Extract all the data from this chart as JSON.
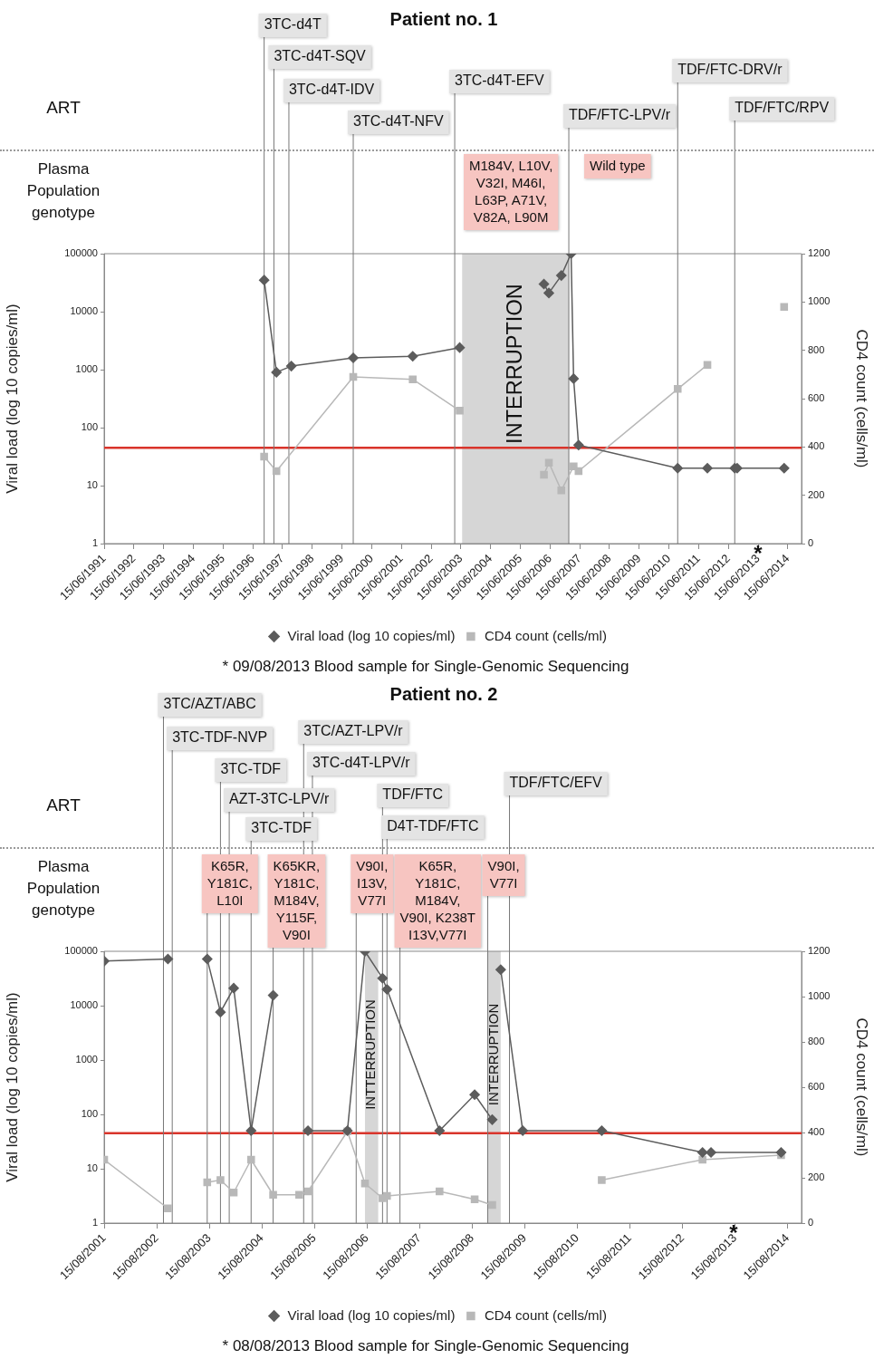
{
  "chart_data": [
    {
      "type": "line",
      "title": "Patient no. 1",
      "ylabel": "Viral load (log 10 copies/ml)",
      "y2label": "CD4 count (cells/ml)",
      "log": "y",
      "legend": "bottom",
      "xlim": [
        "1991-06-15",
        "2014-12-01"
      ],
      "xticks": [
        {
          "value": "1991-06-15",
          "label": "15/06/1991"
        },
        {
          "value": "1992-06-15",
          "label": "15/06/1992"
        },
        {
          "value": "1993-06-15",
          "label": "15/06/1993"
        },
        {
          "value": "1994-06-15",
          "label": "15/06/1994"
        },
        {
          "value": "1995-06-15",
          "label": "15/06/1995"
        },
        {
          "value": "1996-06-15",
          "label": "15/06/1996"
        },
        {
          "value": "1997-06-15",
          "label": "15/06/1997"
        },
        {
          "value": "1998-06-15",
          "label": "15/06/1998"
        },
        {
          "value": "1999-06-15",
          "label": "15/06/1999"
        },
        {
          "value": "2000-06-15",
          "label": "15/06/2000"
        },
        {
          "value": "2001-06-15",
          "label": "15/06/2001"
        },
        {
          "value": "2002-06-15",
          "label": "15/06/2002"
        },
        {
          "value": "2003-06-15",
          "label": "15/06/2003"
        },
        {
          "value": "2004-06-15",
          "label": "15/06/2004"
        },
        {
          "value": "2005-06-15",
          "label": "15/06/2005"
        },
        {
          "value": "2006-06-15",
          "label": "15/06/2006"
        },
        {
          "value": "2007-06-15",
          "label": "15/06/2007"
        },
        {
          "value": "2008-06-15",
          "label": "15/06/2008"
        },
        {
          "value": "2009-06-15",
          "label": "15/06/2009"
        },
        {
          "value": "2010-06-15",
          "label": "15/06/2010"
        },
        {
          "value": "2011-06-15",
          "label": "15/06/2011"
        },
        {
          "value": "2012-06-15",
          "label": "15/06/2012"
        },
        {
          "value": "2013-06-15",
          "label": "15/06/2013"
        },
        {
          "value": "2014-06-15",
          "label": "15/06/2014"
        }
      ],
      "ylim": [
        1,
        100000
      ],
      "yticks": [
        1,
        10,
        100,
        1000,
        10000,
        100000
      ],
      "y2lim": [
        0,
        1200
      ],
      "y2ticks": [
        0,
        200,
        400,
        600,
        800,
        1000,
        1200
      ],
      "series": [
        {
          "name": "Viral load (log 10 copies/ml)",
          "color": "#5c5c5c",
          "marker": "diamond",
          "x": [
            "1996-11",
            "1997-04",
            "1997-10",
            "1999-11",
            "2001-11",
            "2003-06",
            "2004-12",
            "2006-04",
            "2006-06",
            "2006-11",
            "2007-03",
            "2007-04",
            "2007-06",
            "2010-10",
            "2011-10",
            "2012-09",
            "2012-10",
            "2014-05"
          ],
          "values": [
            35000,
            900,
            1150,
            1600,
            1700,
            2400,
            null,
            30000,
            21000,
            42000,
            100000,
            700,
            50,
            20,
            20,
            20,
            20,
            20
          ]
        },
        {
          "name": "CD4 count (cells/ml)",
          "color": "#b8b8b8",
          "marker": "square",
          "axis": "y2",
          "x": [
            "1996-11",
            "1997-04",
            "1999-11",
            "2001-11",
            "2003-06",
            "2004-12",
            "2006-04",
            "2006-06",
            "2006-11",
            "2007-04",
            "2007-06",
            "2010-10",
            "2011-10",
            "2013-01",
            "2014-05"
          ],
          "values": [
            360,
            300,
            690,
            680,
            550,
            null,
            285,
            335,
            220,
            320,
            300,
            640,
            740,
            null,
            980
          ]
        }
      ],
      "ref_lines": [
        {
          "axis": "y",
          "value": 45,
          "color": "#d9342b"
        },
        {
          "axis": "x",
          "value": "1996-11",
          "label": "3TC-d4T"
        },
        {
          "axis": "x",
          "value": "1997-03",
          "label": "3TC-d4T-SQV"
        },
        {
          "axis": "x",
          "value": "1997-09",
          "label": "3TC-d4T-IDV"
        },
        {
          "axis": "x",
          "value": "1999-11",
          "label": "3TC-d4T-NFV"
        },
        {
          "axis": "x",
          "value": "2003-04",
          "label": "3TC-d4T-EFV"
        },
        {
          "axis": "x",
          "value": "2007-02",
          "label": "TDF/FTC-LPV/r"
        },
        {
          "axis": "x",
          "value": "2010-10",
          "label": "TDF/FTC-DRV/r"
        },
        {
          "axis": "x",
          "value": "2012-09",
          "label": "TDF/FTC/RPV"
        }
      ],
      "bands": [
        {
          "axis": "x",
          "from": "2003-07",
          "to": "2007-02",
          "label": "INTERRUPTION",
          "color": "#d6d6d6"
        }
      ],
      "annotations": [
        "ART",
        "Plasma\nPopulation\ngenotype",
        "M184V, L10V,\nV32I, M46I,\nL63P, A71V,\nV82A, L90M",
        "Wild type",
        "*",
        "* 09/08/2013 Blood sample for Single-Genomic Sequencing"
      ]
    },
    {
      "type": "line",
      "title": "Patient no. 2",
      "ylabel": "Viral load (log 10 copies/ml)",
      "y2label": "CD4 count (cells/ml)",
      "log": "y",
      "legend": "bottom",
      "xlim": [
        "2001-08-15",
        "2014-11-20"
      ],
      "xticks": [
        {
          "value": "2001-08-15",
          "label": "15/08/2001"
        },
        {
          "value": "2002-08-15",
          "label": "15/08/2002"
        },
        {
          "value": "2003-08-15",
          "label": "15/08/2003"
        },
        {
          "value": "2004-08-15",
          "label": "15/08/2004"
        },
        {
          "value": "2005-08-15",
          "label": "15/08/2005"
        },
        {
          "value": "2006-08-15",
          "label": "15/08/2006"
        },
        {
          "value": "2007-08-15",
          "label": "15/08/2007"
        },
        {
          "value": "2008-08-15",
          "label": "15/08/2008"
        },
        {
          "value": "2009-08-15",
          "label": "15/08/2009"
        },
        {
          "value": "2010-08-15",
          "label": "15/08/2010"
        },
        {
          "value": "2011-08-15",
          "label": "15/08/2011"
        },
        {
          "value": "2012-08-15",
          "label": "15/08/2012"
        },
        {
          "value": "2013-08-15",
          "label": "15/08/2013"
        },
        {
          "value": "2014-08-15",
          "label": "15/08/2014"
        }
      ],
      "ylim": [
        1,
        100000
      ],
      "yticks": [
        1,
        10,
        100,
        1000,
        10000,
        100000
      ],
      "y2lim": [
        0,
        1200
      ],
      "y2ticks": [
        0,
        200,
        400,
        600,
        800,
        1000,
        1200
      ],
      "series": [
        {
          "name": "Viral load (log 10 copies/ml)",
          "color": "#5c5c5c",
          "marker": "diamond",
          "x": [
            "2001-08-15",
            "2002-11",
            "2003-03",
            "2003-08",
            "2003-11",
            "2004-02",
            "2004-06",
            "2004-11",
            "2005-03",
            "2005-07",
            "2006-04",
            "2006-08",
            "2006-12",
            "2007-01",
            "2008-01",
            "2008-09",
            "2009-01",
            "2009-02",
            "2009-03",
            "2009-08",
            "2011-02",
            "2013-01",
            "2013-03",
            "2014-07"
          ],
          "values": [
            66000,
            72000,
            null,
            72000,
            7600,
            21000,
            50,
            15500,
            null,
            50,
            50,
            100000,
            32000,
            20000,
            50,
            230,
            80,
            null,
            46000,
            50,
            50,
            20,
            20,
            20
          ]
        },
        {
          "name": "CD4 count (cells/ml)",
          "color": "#b8b8b8",
          "marker": "square",
          "axis": "y2",
          "x": [
            "2001-08-15",
            "2002-11",
            "2003-03",
            "2003-08",
            "2003-11",
            "2004-02",
            "2004-06",
            "2004-11",
            "2005-05",
            "2005-07",
            "2006-04",
            "2006-08",
            "2006-12",
            "2007-01",
            "2008-01",
            "2008-09",
            "2009-01",
            "2010-01",
            "2011-02",
            "2013-01",
            "2014-07"
          ],
          "values": [
            280,
            65,
            null,
            180,
            190,
            135,
            280,
            125,
            125,
            140,
            405,
            175,
            110,
            120,
            140,
            105,
            80,
            null,
            190,
            280,
            300
          ]
        }
      ],
      "ref_lines": [
        {
          "axis": "y",
          "value": 45,
          "color": "#d9342b"
        },
        {
          "axis": "x",
          "value": "2002-10",
          "label": "3TC/AZT/ABC"
        },
        {
          "axis": "x",
          "value": "2002-12",
          "label": "3TC-TDF-NVP"
        },
        {
          "axis": "x",
          "value": "2003-11",
          "label": "3TC-TDF"
        },
        {
          "axis": "x",
          "value": "2004-01",
          "label": "AZT-3TC-LPV/r"
        },
        {
          "axis": "x",
          "value": "2004-06",
          "label": "3TC-TDF"
        },
        {
          "axis": "x",
          "value": "2005-06",
          "label": "3TC/AZT-LPV/r"
        },
        {
          "axis": "x",
          "value": "2005-08",
          "label": "3TC-d4T-LPV/r"
        },
        {
          "axis": "x",
          "value": "2006-12",
          "label": "TDF/FTC"
        },
        {
          "axis": "x",
          "value": "2007-01",
          "label": "D4T-TDF/FTC"
        },
        {
          "axis": "x",
          "value": "2009-05",
          "label": "TDF/FTC/EFV"
        },
        {
          "axis": "x",
          "value": "2003-08",
          "label": "K65R,\nY181C,\nL10I"
        },
        {
          "axis": "x",
          "value": "2004-11",
          "label": "K65KR,\nY181C,\nM184V,\nY115F,\nV90I"
        },
        {
          "axis": "x",
          "value": "2006-06",
          "label": "V90I,\nI13V,\nV77I"
        },
        {
          "axis": "x",
          "value": "2007-04",
          "label": "K65R,\nY181C,\nM184V,\nV90I, K238T\nI13V,V77I"
        },
        {
          "axis": "x",
          "value": "2008-12",
          "label": "V90I,\nV77I"
        }
      ],
      "bands": [
        {
          "axis": "x",
          "from": "2006-08",
          "to": "2006-11",
          "label": "INTTERRUPTION",
          "color": "#d6d6d6"
        },
        {
          "axis": "x",
          "from": "2008-12",
          "to": "2009-03",
          "label": "INTERRUPTION",
          "color": "#d6d6d6"
        }
      ],
      "annotations": [
        "ART",
        "Plasma\nPopulation\ngenotype",
        "*",
        "* 08/08/2013 Blood sample for Single-Genomic Sequencing"
      ]
    }
  ]
}
